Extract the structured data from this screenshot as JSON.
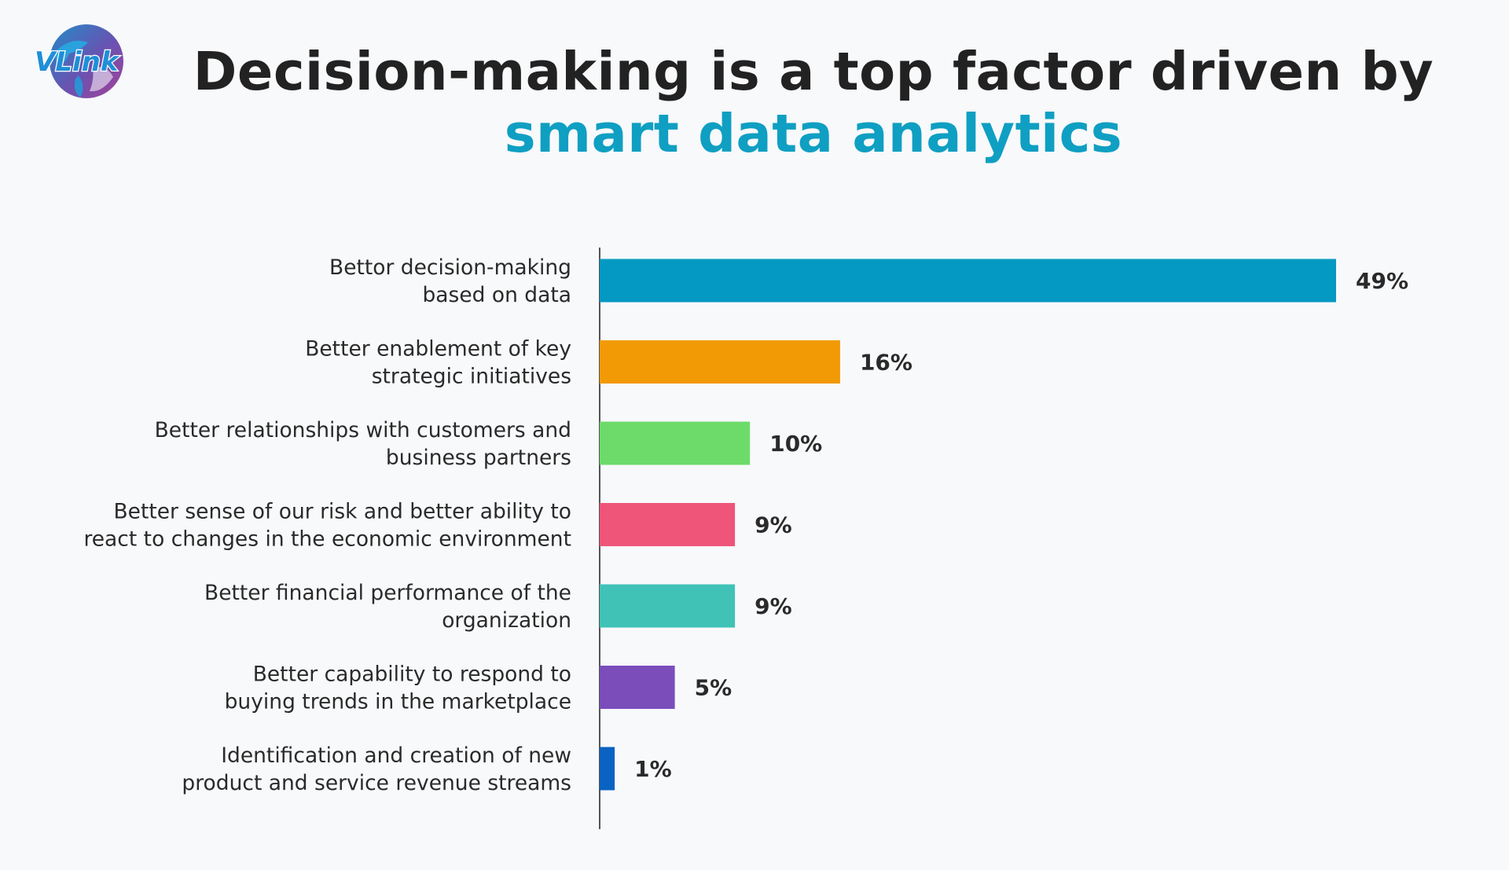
{
  "header": {
    "logo_text": "VLink",
    "title_line1": "Decision-making is a top factor driven by",
    "title_line2": "smart data analytics"
  },
  "colors": {
    "title_accent": "#0f9fc2",
    "axis": "#555555"
  },
  "chart_data": {
    "type": "bar",
    "orientation": "horizontal",
    "title": "Decision-making is a top factor driven by smart data analytics",
    "xlabel": "",
    "ylabel": "",
    "xlim": [
      0,
      49
    ],
    "grid": false,
    "value_suffix": "%",
    "categories": [
      [
        "Bettor decision-making",
        "based on data"
      ],
      [
        "Better enablement of key",
        "strategic initiatives"
      ],
      [
        "Better relationships with customers and",
        "business partners"
      ],
      [
        "Better sense of our risk and better ability to",
        "react to changes in the economic environment"
      ],
      [
        "Better financial performance of the",
        "organization"
      ],
      [
        "Better capability to respond to",
        "buying trends in the marketplace"
      ],
      [
        "Identification and creation of new",
        "product and service revenue streams"
      ]
    ],
    "values": [
      49,
      16,
      10,
      9,
      9,
      5,
      1
    ],
    "value_labels": [
      "49%",
      "16%",
      "10%",
      "9%",
      "9%",
      "5%",
      "1%"
    ],
    "bar_colors": [
      "#0399c2",
      "#f29a05",
      "#6ddb6a",
      "#ef5479",
      "#40c2b6",
      "#7a4dbb",
      "#0a62c2"
    ]
  }
}
